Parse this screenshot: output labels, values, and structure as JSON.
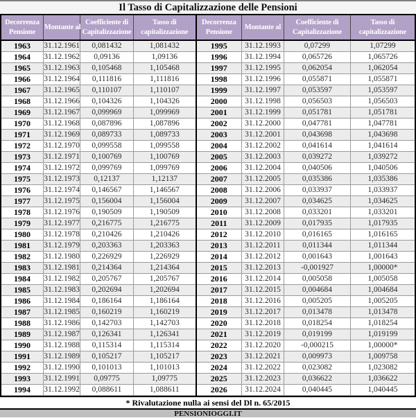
{
  "page": {
    "title": "Il Tasso di Capitalizzazione delle Pensioni",
    "footnote": "* Rivalutazione nulla ai sensi del Dl n. 65/2015",
    "source": "PENSIONIOGGI.IT"
  },
  "colors": {
    "header_bg": "#b2a1c7",
    "header_text": "#ffffff",
    "alt_row_bg": "#ececec",
    "row_bg": "#ffffff",
    "grid_line": "#9a9a9a",
    "frame": "#000000",
    "title_bg": "#f4f4f4",
    "top_line": "#7f7f7f",
    "source_bar_bg": "#bfbfbf"
  },
  "table": {
    "headers": [
      "Decorrenza Pensione",
      "Montante al",
      "Coefficiente di Capitalizzazione",
      "Tasso di capitalizzazione",
      "Decorrenza Pensione",
      "Montante al",
      "Coefficiente di Capitalizzazione",
      "Tasso di capitalizzazione"
    ],
    "rows": [
      [
        "1963",
        "31.12.1961",
        "0,081432",
        "1,081432",
        "1995",
        "31.12.1993",
        "0,07299",
        "1,07299"
      ],
      [
        "1964",
        "31.12.1962",
        "0,09136",
        "1,09136",
        "1996",
        "31.12.1994",
        "0,065726",
        "1,065726"
      ],
      [
        "1965",
        "31.12.1963",
        "0,105468",
        "1,105468",
        "1997",
        "31.12.1995",
        "0,062054",
        "1,062054"
      ],
      [
        "1966",
        "31.12.1964",
        "0,111816",
        "1,111816",
        "1998",
        "31.12.1996",
        "0,055871",
        "1,055871"
      ],
      [
        "1967",
        "31.12.1965",
        "0,110107",
        "1,110107",
        "1999",
        "31.12.1997",
        "0,053597",
        "1,053597"
      ],
      [
        "1968",
        "31.12.1966",
        "0,104326",
        "1,104326",
        "2000",
        "31.12.1998",
        "0,056503",
        "1,056503"
      ],
      [
        "1969",
        "31.12.1967",
        "0,099969",
        "1,099969",
        "2001",
        "31.12.1999",
        "0,051781",
        "1,051781"
      ],
      [
        "1970",
        "31.12.1968",
        "0,087896",
        "1,087896",
        "2002",
        "31.12.2000",
        "0,047781",
        "1,047781"
      ],
      [
        "1971",
        "31.12.1969",
        "0,089733",
        "1,089733",
        "2003",
        "31.12.2001",
        "0,043698",
        "1,043698"
      ],
      [
        "1972",
        "31.12.1970",
        "0,099558",
        "1,099558",
        "2004",
        "31.12.2002",
        "0,041614",
        "1,041614"
      ],
      [
        "1973",
        "31.12.1971",
        "0,100769",
        "1,100769",
        "2005",
        "31.12.2003",
        "0,039272",
        "1,039272"
      ],
      [
        "1974",
        "31.12.1972",
        "0,099769",
        "1,099769",
        "2006",
        "31.12.2004",
        "0,040506",
        "1,040506"
      ],
      [
        "1975",
        "31.12.1973",
        "0,12137",
        "1,12137",
        "2007",
        "31.12.2005",
        "0,035386",
        "1,035386"
      ],
      [
        "1976",
        "31.12.1974",
        "0,146567",
        "1,146567",
        "2008",
        "31.12.2006",
        "0,033937",
        "1,033937"
      ],
      [
        "1977",
        "31.12.1975",
        "0,156004",
        "1,156004",
        "2009",
        "31.12.2007",
        "0,034625",
        "1,034625"
      ],
      [
        "1978",
        "31.12.1976",
        "0,190509",
        "1,190509",
        "2010",
        "31.12.2008",
        "0,033201",
        "1,033201"
      ],
      [
        "1979",
        "31.12.1977",
        "0,216775",
        "1,216775",
        "2011",
        "31.12.2009",
        "0,017935",
        "1,017935"
      ],
      [
        "1980",
        "31.12.1978",
        "0,210426",
        "1,210426",
        "2012",
        "31.12.2010",
        "0,016165",
        "1,016165"
      ],
      [
        "1981",
        "31.12.1979",
        "0,203363",
        "1,203363",
        "2013",
        "31.12.2011",
        "0,011344",
        "1,011344"
      ],
      [
        "1982",
        "31.12.1980",
        "0,226929",
        "1,226929",
        "2014",
        "31.12.2012",
        "0,001643",
        "1,001643"
      ],
      [
        "1983",
        "31.12.1981",
        "0,214364",
        "1,214364",
        "2015",
        "31.12.2013",
        "-0,001927",
        "1,00000*"
      ],
      [
        "1984",
        "31.12.1982",
        "0,205767",
        "1,205767",
        "2016",
        "31.12.2014",
        "0,005058",
        "1,005058"
      ],
      [
        "1985",
        "31.12.1983",
        "0,202694",
        "1,202694",
        "2017",
        "31.12.2015",
        "0,004684",
        "1,004684"
      ],
      [
        "1986",
        "31.12.1984",
        "0,186164",
        "1,186164",
        "2018",
        "31.12.2016",
        "0,005205",
        "1,005205"
      ],
      [
        "1987",
        "31.12.1985",
        "0,160219",
        "1,160219",
        "2019",
        "31.12.2017",
        "0,013478",
        "1,013478"
      ],
      [
        "1988",
        "31.12.1986",
        "0,142703",
        "1,142703",
        "2020",
        "31.12.2018",
        "0,018254",
        "1,018254"
      ],
      [
        "1989",
        "31.12.1987",
        "0,126341",
        "1,126341",
        "2021",
        "31.12.2019",
        "0,019199",
        "1,019199"
      ],
      [
        "1990",
        "31.12.1988",
        "0,115314",
        "1,115314",
        "2022",
        "31.12.2020",
        "-0,000215",
        "1,00000*"
      ],
      [
        "1991",
        "31.12.1989",
        "0,105217",
        "1,105217",
        "2023",
        "31.12.2021",
        "0,009973",
        "1,009758"
      ],
      [
        "1992",
        "31.12.1990",
        "0,101013",
        "1,101013",
        "2024",
        "31.12.2022",
        "0,023082",
        "1,023082"
      ],
      [
        "1993",
        "31.12.1991",
        "0,09775",
        "1,09775",
        "2025",
        "31.12.2023",
        "0,036622",
        "1,036622"
      ],
      [
        "1994",
        "31.12.1992",
        "0,088611",
        "1,088611",
        "2026",
        "31.12.2024",
        "0,040445",
        "1,040445"
      ]
    ]
  }
}
